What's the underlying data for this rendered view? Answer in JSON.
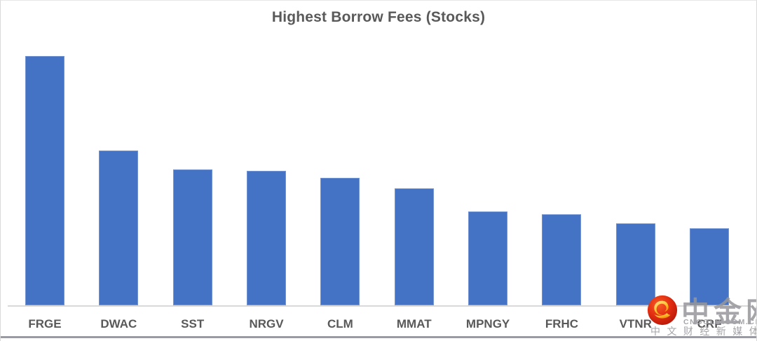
{
  "chart_data": {
    "type": "bar",
    "title": "Highest Borrow Fees (Stocks)",
    "categories": [
      "FRGE",
      "DWAC",
      "SST",
      "NRGV",
      "CLM",
      "MMAT",
      "MPNGY",
      "FRHC",
      "VTNR",
      "CRF"
    ],
    "values": [
      1.0,
      0.62,
      0.545,
      0.54,
      0.51,
      0.47,
      0.375,
      0.365,
      0.33,
      0.31
    ],
    "value_note": "relative bar heights; no y-axis or data labels are visible, FRGE (tallest) normalized to 1.0",
    "xlabel": "",
    "ylabel": "",
    "ylim": [
      0,
      1.08
    ],
    "grid": false,
    "legend": false,
    "y_axis_visible": false,
    "bar_color": "#4472C4",
    "axis_line_color": "#D9D9D9",
    "label_color": "#595959",
    "title_color": "#595959"
  },
  "watermark": {
    "brand": "中金网",
    "domain": "CNGOLD.COM.CN",
    "tagline": "中 文 财 经 新 媒 体",
    "text_color": "#A6A6A6",
    "logo": {
      "icon_name": "cngold-swirl-logo-icon",
      "circle_color": "#DC2612",
      "swirl_color": "#FFC53D"
    }
  }
}
